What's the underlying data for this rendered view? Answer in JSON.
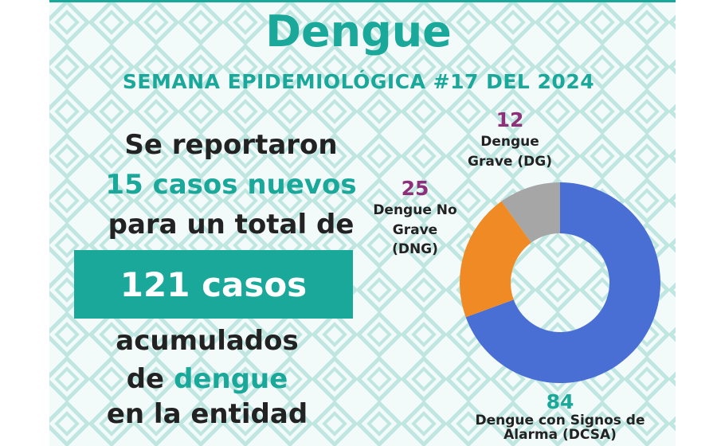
{
  "header": {
    "title": "Dengue",
    "subtitle": "SEMANA EPIDEMIOLÓGICA #17 DEL 2024"
  },
  "summary": {
    "line1": "Se reportaron",
    "new_cases": "15 casos nuevos",
    "line3": "para un total de",
    "total": "121 casos",
    "line5": "acumulados",
    "line6_prefix": "de",
    "line6_highlight": "dengue",
    "line7": "en la entidad"
  },
  "chart_data": {
    "type": "donut",
    "categories": [
      "Dengue con Signos de Alarma (DCSA)",
      "Dengue No Grave (DNG)",
      "Dengue Grave (DG)"
    ],
    "values": [
      84,
      25,
      12
    ],
    "colors": [
      "#4a6fd4",
      "#f08a24",
      "#a6a6a6"
    ],
    "value_colors": [
      "#1aa89a",
      "#8e2f7a",
      "#8e2f7a"
    ]
  }
}
